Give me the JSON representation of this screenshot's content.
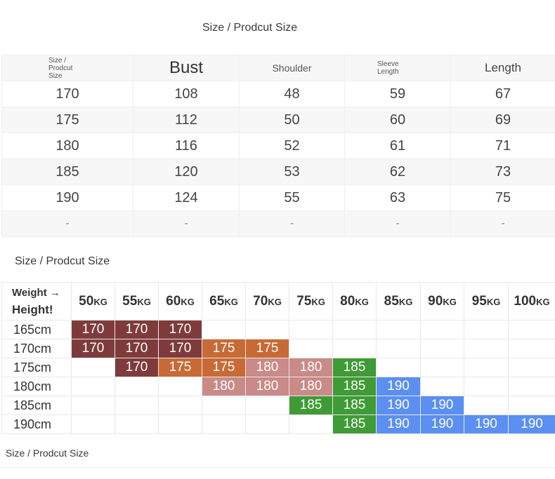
{
  "section_titles": {
    "top": "Size / Prodcut Size",
    "middle": "Size / Prodcut Size",
    "bottom": "Size / Prodcut Size"
  },
  "measure_table": {
    "headers": {
      "size": [
        "Size /",
        "Prodcut",
        "Size"
      ],
      "bust": "Bust",
      "shoulder": "Shoulder",
      "sleeve": [
        "Sleeve",
        "Length"
      ],
      "length": "Length"
    },
    "rows": [
      [
        "170",
        "108",
        "48",
        "59",
        "67"
      ],
      [
        "175",
        "112",
        "50",
        "60",
        "69"
      ],
      [
        "180",
        "116",
        "52",
        "61",
        "71"
      ],
      [
        "185",
        "120",
        "53",
        "62",
        "73"
      ],
      [
        "190",
        "124",
        "55",
        "63",
        "75"
      ],
      [
        "-",
        "-",
        "-",
        "-",
        "-"
      ]
    ]
  },
  "size_chart": {
    "corner": {
      "weight": "Weight →",
      "height": "Height!"
    },
    "weight_unit": "KG",
    "weights": [
      "50",
      "55",
      "60",
      "65",
      "70",
      "75",
      "80",
      "85",
      "90",
      "95",
      "100"
    ],
    "heights": [
      "165cm",
      "170cm",
      "175cm",
      "180cm",
      "185cm",
      "190cm"
    ],
    "grid": [
      [
        "170",
        "170",
        "170",
        "",
        "",
        "",
        "",
        "",
        "",
        "",
        ""
      ],
      [
        "170",
        "170",
        "170",
        "175",
        "175",
        "",
        "",
        "",
        "",
        "",
        ""
      ],
      [
        "",
        "170",
        "175",
        "175",
        "180",
        "180",
        "185",
        "",
        "",
        "",
        ""
      ],
      [
        "",
        "",
        "",
        "180",
        "180",
        "180",
        "185",
        "190",
        "",
        "",
        ""
      ],
      [
        "",
        "",
        "",
        "",
        "",
        "185",
        "185",
        "190",
        "190",
        "",
        ""
      ],
      [
        "",
        "",
        "",
        "",
        "",
        "",
        "185",
        "190",
        "190",
        "190",
        "190"
      ]
    ],
    "colors": {
      "size_170": "#7f3b3b",
      "size_175_orange": "#c86a35",
      "size_175_180_pink": "#c98a88",
      "size_185": "#3f9b35",
      "size_190": "#5b8ff2"
    }
  }
}
